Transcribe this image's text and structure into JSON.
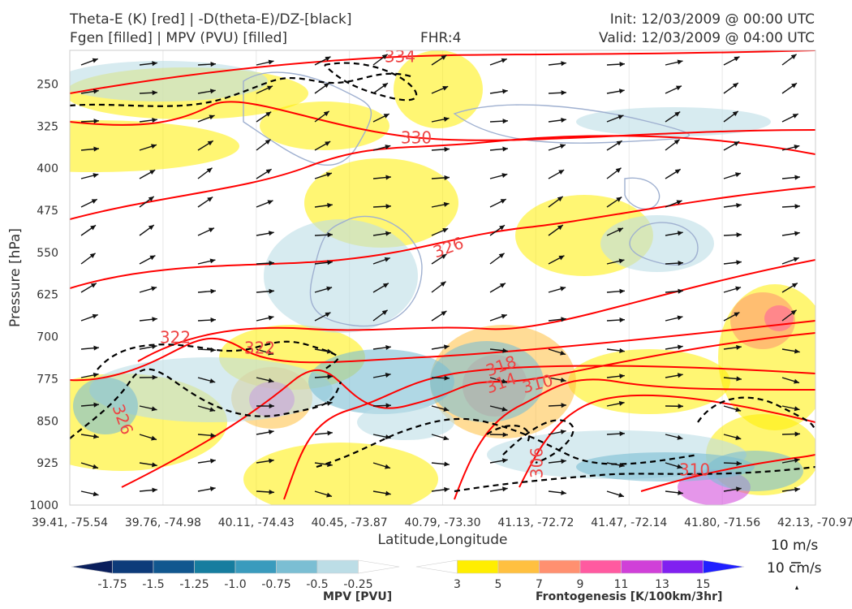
{
  "header": {
    "title_line1": "Theta-E (K) [red] | -D(theta-E)/DZ-[black]",
    "title_line2": "Fgen [filled] | MPV (PVU) [filled]",
    "fhr": "FHR:4",
    "init": "Init: 12/03/2009 @ 00:00 UTC",
    "valid": "Valid: 12/03/2009 @ 04:00 UTC"
  },
  "chart_data": {
    "type": "cross-section",
    "xlabel": "Latitude,Longitude",
    "ylabel": "Pressure [hPa]",
    "x_ticks": [
      "39.41, -75.54",
      "39.76, -74.98",
      "40.11, -74.43",
      "40.45, -73.87",
      "40.79, -73.30",
      "41.13, -72.72",
      "41.47, -72.14",
      "41.80, -71.56",
      "42.13, -70.97"
    ],
    "y_ticks": [
      250,
      325,
      400,
      475,
      550,
      625,
      700,
      775,
      850,
      925,
      1000
    ],
    "ylim": [
      1000,
      190
    ],
    "theta_e_labels": [
      "334",
      "330",
      "326",
      "322",
      "322",
      "326",
      "318",
      "314",
      "310",
      "306",
      "310"
    ],
    "wind_reference": {
      "horizontal": "10 m/s",
      "vertical": "10 cm/s"
    },
    "colorbars": {
      "mpv": {
        "title": "MPV [PVU]",
        "ticks": [
          "-1.75",
          "-1.5",
          "-1.25",
          "-1.0",
          "-0.75",
          "-0.5",
          "-0.25"
        ],
        "colors": [
          "#0a1f5c",
          "#0d3b7a",
          "#11578f",
          "#167d9f",
          "#3a9bbd",
          "#7bbed3",
          "#bcdde6",
          "#ffffff"
        ]
      },
      "fgen": {
        "title": "Frontogenesis [K/100km/3hr]",
        "ticks": [
          "3",
          "5",
          "7",
          "9",
          "11",
          "13",
          "15"
        ],
        "colors": [
          "#ffffff",
          "#ffee00",
          "#ffc040",
          "#ff9070",
          "#ff5aa0",
          "#d040d8",
          "#8020f0",
          "#2020ff"
        ]
      }
    },
    "contour_colors": {
      "theta_e": "#ff0000",
      "stability": "#000000",
      "mpv_line": "#9fb0d0"
    }
  }
}
